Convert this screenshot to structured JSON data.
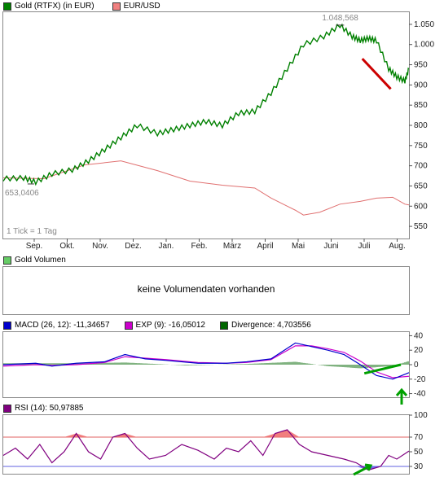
{
  "colors": {
    "gold": "#008000",
    "eurusd": "#e07070",
    "macd": "#0000cc",
    "exp": "#cc00cc",
    "divergence": "#006600",
    "rsi": "#800080",
    "rsi_fill": "#f07070",
    "annot_red": "#cc0000",
    "annot_green": "#00a000"
  },
  "price_panel": {
    "legend": [
      {
        "label": "Gold (RTFX) (in EUR)",
        "color": "#006600",
        "icon": "green-square"
      },
      {
        "label": "EUR/USD",
        "color": "#e08080",
        "icon": "red-square"
      }
    ],
    "high_label": "1.048,568",
    "low_label": "653,0406",
    "tick_note": "1 Tick = 1 Tag",
    "y_ticks": [
      "1.050",
      "1.000",
      "950",
      "900",
      "850",
      "800",
      "750",
      "700",
      "650",
      "600",
      "550"
    ],
    "months": [
      "Sep.",
      "Okt.",
      "Nov.",
      "Dez.",
      "Jan.",
      "Feb.",
      "März",
      "April",
      "Mai",
      "Juni",
      "Juli",
      "Aug."
    ]
  },
  "volume_panel": {
    "legend": "Gold Volumen",
    "message": "keine Volumendaten vorhanden"
  },
  "macd_panel": {
    "legend": [
      {
        "label": "MACD (26, 12): -11,34657",
        "color": "#0000cc"
      },
      {
        "label": "EXP (9): -16,05012",
        "color": "#cc00cc"
      },
      {
        "label": "Divergence: 4,703556",
        "color": "#006600"
      }
    ],
    "y_ticks": [
      "40",
      "20",
      "0",
      "-20",
      "-40"
    ]
  },
  "rsi_panel": {
    "legend": {
      "label": "RSI (14): 50,97885",
      "color": "#800080"
    },
    "y_ticks": [
      "100",
      "70",
      "50",
      "30"
    ]
  },
  "chart_data": [
    {
      "type": "line",
      "title": "Gold (RTFX) (in EUR)",
      "series": [
        {
          "name": "Gold (RTFX) (in EUR)",
          "points": [
            [
              0,
              668
            ],
            [
              5,
              670
            ],
            [
              8,
              660
            ],
            [
              12,
              680
            ],
            [
              17,
              690
            ],
            [
              21,
              712
            ],
            [
              25,
              740
            ],
            [
              29,
              770
            ],
            [
              33,
              800
            ],
            [
              38,
              780
            ],
            [
              42,
              790
            ],
            [
              46,
              800
            ],
            [
              50,
              810
            ],
            [
              54,
              800
            ],
            [
              58,
              830
            ],
            [
              62,
              835
            ],
            [
              66,
              880
            ],
            [
              70,
              940
            ],
            [
              74,
              1000
            ],
            [
              79,
              1020
            ],
            [
              83,
              1048
            ],
            [
              86,
              1020
            ],
            [
              88,
              1010
            ],
            [
              90,
              1015
            ],
            [
              92,
              1010
            ],
            [
              95,
              940
            ],
            [
              97,
              920
            ],
            [
              99,
              910
            ],
            [
              100,
              940
            ]
          ]
        },
        {
          "name": "EUR/USD",
          "points": [
            [
              0,
              670
            ],
            [
              10,
              668
            ],
            [
              20,
              702
            ],
            [
              29,
              712
            ],
            [
              38,
              688
            ],
            [
              46,
              662
            ],
            [
              54,
              652
            ],
            [
              62,
              645
            ],
            [
              66,
              620
            ],
            [
              70,
              600
            ],
            [
              72,
              590
            ],
            [
              74,
              578
            ],
            [
              78,
              585
            ],
            [
              83,
              605
            ],
            [
              88,
              612
            ],
            [
              92,
              620
            ],
            [
              96,
              622
            ],
            [
              99,
              605
            ],
            [
              100,
              603
            ]
          ]
        }
      ],
      "ylim": [
        520,
        1080
      ],
      "y_ticks": [
        550,
        600,
        650,
        700,
        750,
        800,
        850,
        900,
        950,
        1000,
        1050
      ],
      "annotations": [
        "1.048,568",
        "653,0406",
        "1 Tick = 1 Tag"
      ]
    },
    {
      "type": "line",
      "title": "MACD (26, 12)",
      "series": [
        {
          "name": "MACD (26, 12)",
          "points": [
            [
              0,
              0
            ],
            [
              8,
              2
            ],
            [
              12,
              -2
            ],
            [
              18,
              2
            ],
            [
              25,
              4
            ],
            [
              30,
              14
            ],
            [
              35,
              8
            ],
            [
              40,
              6
            ],
            [
              48,
              2
            ],
            [
              55,
              2
            ],
            [
              60,
              4
            ],
            [
              66,
              8
            ],
            [
              72,
              30
            ],
            [
              76,
              25
            ],
            [
              80,
              20
            ],
            [
              84,
              14
            ],
            [
              88,
              0
            ],
            [
              92,
              -15
            ],
            [
              96,
              -20
            ],
            [
              100,
              -11
            ]
          ]
        },
        {
          "name": "EXP (9)",
          "points": [
            [
              0,
              -2
            ],
            [
              8,
              0
            ],
            [
              12,
              -1
            ],
            [
              18,
              0
            ],
            [
              25,
              3
            ],
            [
              30,
              11
            ],
            [
              35,
              9
            ],
            [
              40,
              7
            ],
            [
              48,
              3
            ],
            [
              55,
              2
            ],
            [
              60,
              3
            ],
            [
              66,
              7
            ],
            [
              72,
              26
            ],
            [
              76,
              26
            ],
            [
              80,
              22
            ],
            [
              84,
              17
            ],
            [
              88,
              5
            ],
            [
              92,
              -10
            ],
            [
              96,
              -18
            ],
            [
              100,
              -16
            ]
          ]
        },
        {
          "name": "Divergence",
          "points": [
            [
              0,
              2
            ],
            [
              20,
              2
            ],
            [
              30,
              3
            ],
            [
              45,
              -1
            ],
            [
              60,
              1
            ],
            [
              72,
              4
            ],
            [
              80,
              -2
            ],
            [
              88,
              -5
            ],
            [
              96,
              -2
            ],
            [
              100,
              5
            ]
          ]
        }
      ],
      "ylim": [
        -45,
        45
      ],
      "y_ticks": [
        -40,
        -20,
        0,
        20,
        40
      ]
    },
    {
      "type": "line",
      "title": "RSI (14)",
      "series": [
        {
          "name": "RSI (14)",
          "points": [
            [
              0,
              45
            ],
            [
              3,
              55
            ],
            [
              6,
              40
            ],
            [
              9,
              60
            ],
            [
              12,
              35
            ],
            [
              15,
              50
            ],
            [
              18,
              75
            ],
            [
              21,
              50
            ],
            [
              24,
              40
            ],
            [
              27,
              70
            ],
            [
              30,
              75
            ],
            [
              33,
              55
            ],
            [
              36,
              40
            ],
            [
              40,
              45
            ],
            [
              44,
              60
            ],
            [
              48,
              52
            ],
            [
              52,
              40
            ],
            [
              55,
              55
            ],
            [
              58,
              50
            ],
            [
              61,
              65
            ],
            [
              64,
              45
            ],
            [
              67,
              75
            ],
            [
              70,
              80
            ],
            [
              73,
              60
            ],
            [
              76,
              50
            ],
            [
              80,
              45
            ],
            [
              84,
              40
            ],
            [
              87,
              35
            ],
            [
              90,
              25
            ],
            [
              93,
              30
            ],
            [
              95,
              45
            ],
            [
              97,
              40
            ],
            [
              100,
              51
            ]
          ]
        }
      ],
      "ylim": [
        20,
        100
      ],
      "y_ticks": [
        30,
        50,
        70,
        100
      ],
      "reference_lines": [
        30,
        70
      ]
    }
  ]
}
